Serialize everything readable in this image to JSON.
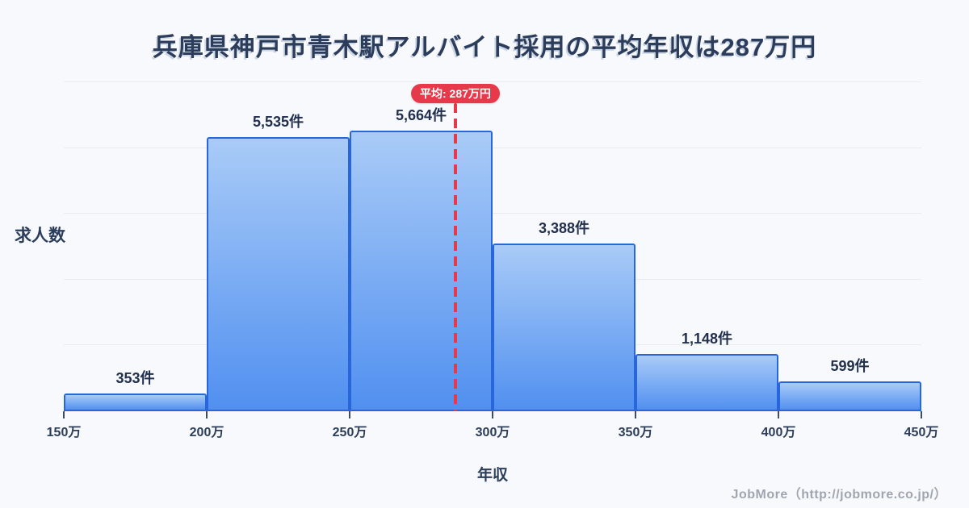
{
  "title": "兵庫県神戸市青木駅アルバイト採用の平均年収は287万円",
  "footer": "JobMore（http://jobmore.co.jp/）",
  "colors": {
    "background": "#f7f9fc",
    "title_text": "#2c3d5c",
    "axis_text": "#2c3d5c",
    "value_text": "#22304e",
    "bar_fill_top": "#a9cbf7",
    "bar_fill_bottom": "#5190f0",
    "bar_border": "#2767db",
    "mean_accent": "#e8394a",
    "gridline": "#e7ecf3",
    "footer_text": "#a0a6b0"
  },
  "chart_data": {
    "type": "bar",
    "subtype": "histogram",
    "title": "兵庫県神戸市青木駅アルバイト採用の平均年収は287万円",
    "xlabel": "年収",
    "ylabel": "求人数",
    "bin_edges": [
      150,
      200,
      250,
      300,
      350,
      400,
      450
    ],
    "bin_unit": "万",
    "tick_labels": [
      "150万",
      "200万",
      "250万",
      "300万",
      "350万",
      "400万",
      "450万"
    ],
    "values": [
      353,
      5535,
      5664,
      3388,
      1148,
      599
    ],
    "bar_labels": [
      "353件",
      "5,535件",
      "5,664件",
      "3,388件",
      "1,148件",
      "599件"
    ],
    "value_unit": "件",
    "mean": 287,
    "mean_label": "平均: 287万円",
    "ylim": [
      0,
      5664
    ],
    "grid": "horizontal",
    "grid_divisions": 5,
    "legend": "none"
  }
}
